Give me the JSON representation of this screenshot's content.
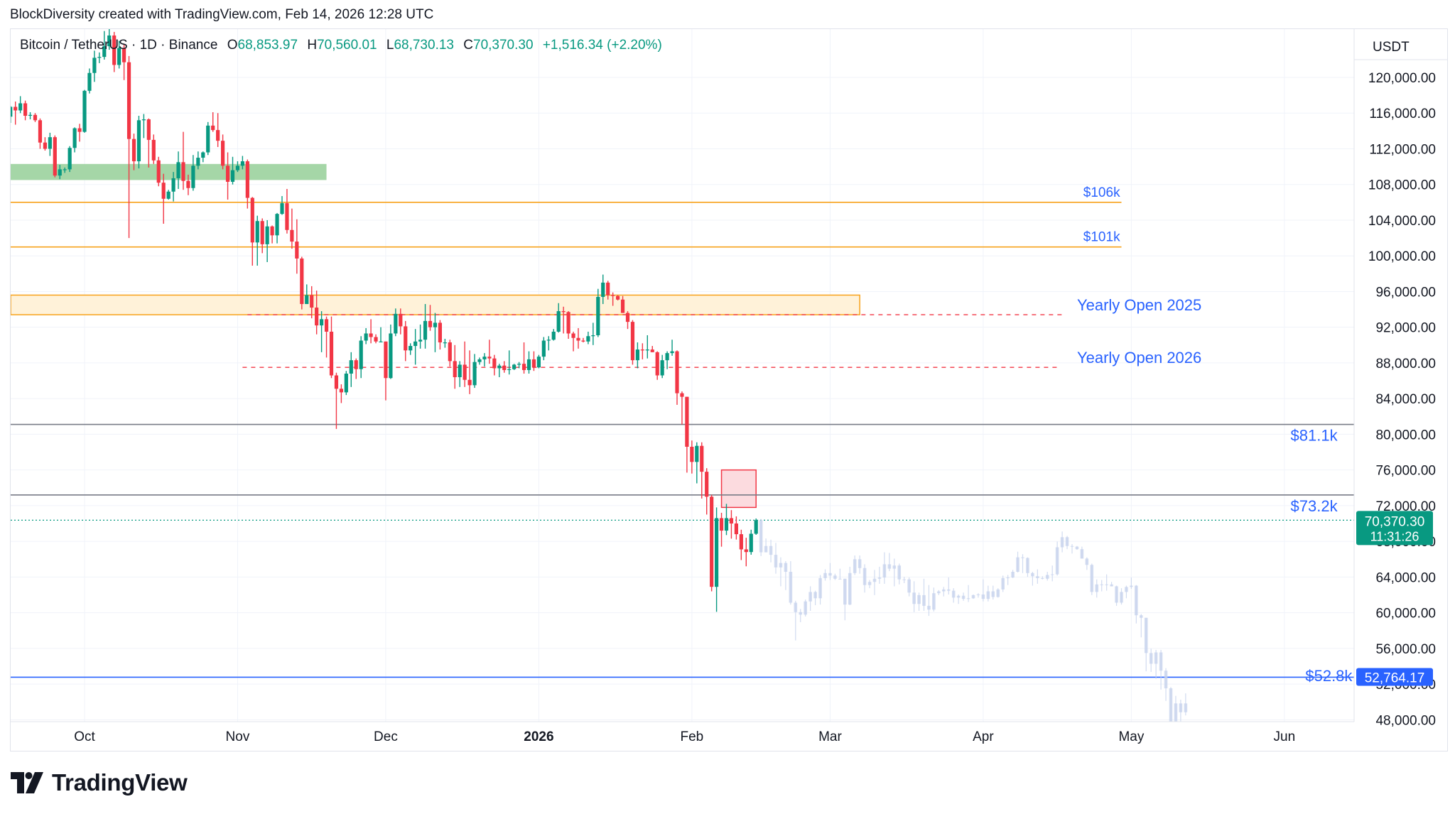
{
  "header": {
    "caption": "BlockDiversity created with TradingView.com, Feb 14, 2026 12:28 UTC"
  },
  "symbol": {
    "name": "Bitcoin / TetherUS · 1D · Binance",
    "open_label": "O",
    "open": "68,853.97",
    "high_label": "H",
    "high": "70,560.01",
    "low_label": "L",
    "low": "68,730.13",
    "close_label": "C",
    "close": "70,370.30",
    "change": "+1,516.34 (+2.20%)"
  },
  "brand": {
    "name": "TradingView",
    "icon": "tradingview-logo-icon"
  },
  "colors": {
    "up": "#089981",
    "down": "#f23645",
    "ghost": "#c5d2ec",
    "blue_line": "#2962ff",
    "annotation": "#2962ff",
    "orange": "#f7a21b"
  },
  "chart_data": {
    "type": "candlestick",
    "currency": "USDT",
    "ylim": [
      48000,
      124000
    ],
    "y_ticks": [
      "120,000.00",
      "116,000.00",
      "112,000.00",
      "108,000.00",
      "104,000.00",
      "100,000.00",
      "96,000.00",
      "92,000.00",
      "88,000.00",
      "84,000.00",
      "80,000.00",
      "76,000.00",
      "72,000.00",
      "68,000.00",
      "64,000.00",
      "60,000.00",
      "56,000.00",
      "52,000.00",
      "48,000.00"
    ],
    "x_ticks": [
      {
        "label": "Oct",
        "date": "2025-10-01",
        "bold": false
      },
      {
        "label": "Nov",
        "date": "2025-11-01",
        "bold": false
      },
      {
        "label": "Dec",
        "date": "2025-12-01",
        "bold": false
      },
      {
        "label": "2026",
        "date": "2026-01-01",
        "bold": true
      },
      {
        "label": "Feb",
        "date": "2026-02-01",
        "bold": false
      },
      {
        "label": "Mar",
        "date": "2026-03-01",
        "bold": false
      },
      {
        "label": "Apr",
        "date": "2026-04-01",
        "bold": false
      },
      {
        "label": "May",
        "date": "2026-05-01",
        "bold": false
      },
      {
        "label": "Jun",
        "date": "2026-06-01",
        "bold": false
      }
    ],
    "x_range": [
      "2025-09-16",
      "2026-06-21"
    ],
    "last_price": {
      "value": "70,370.30",
      "countdown": "11:31:26",
      "price": 70370.3
    },
    "marked_price": {
      "value": "52,764.17",
      "price": 52764.17
    },
    "horizontal_lines": [
      {
        "label": "$106k",
        "price": 106000,
        "color": "#f7a21b",
        "start": "2025-09-16",
        "end": "2026-04-29",
        "label_date": "2026-04-25",
        "label_size": "small"
      },
      {
        "label": "$101k",
        "price": 101000,
        "color": "#f7a21b",
        "start": "2025-09-16",
        "end": "2026-04-29",
        "label_date": "2026-04-25",
        "label_size": "small"
      },
      {
        "label": "$81.1k",
        "price": 81100,
        "color": "#787b86",
        "start": "2025-09-16",
        "end": "2026-06-16",
        "label_date": "2026-06-07",
        "label_size": "large"
      },
      {
        "label": "$73.2k",
        "price": 73200,
        "color": "#787b86",
        "start": "2025-09-16",
        "end": "2026-06-16",
        "label_date": "2026-06-07",
        "label_size": "large"
      }
    ],
    "dashed_lines": [
      {
        "label": "Yearly Open 2025",
        "price": 93400,
        "start": "2025-11-03",
        "end": "2026-04-17",
        "label_date": "2026-04-20"
      },
      {
        "label": "Yearly Open 2026",
        "price": 87500,
        "start": "2025-11-02",
        "end": "2026-04-16",
        "label_date": "2026-04-20"
      }
    ],
    "zones": [
      {
        "name": "green-zone",
        "fill": "#a5d6a7",
        "stroke": "none",
        "x0": "2025-09-16",
        "x1": "2025-11-19",
        "y_top": 110300,
        "y_bottom": 108500
      },
      {
        "name": "orange-zone",
        "fill": "#fff2d9",
        "stroke": "#f7a21b",
        "x0": "2025-09-16",
        "x1": "2026-03-07",
        "y_top": 95600,
        "y_bottom": 93400
      },
      {
        "name": "pink-zone",
        "fill": "#fbd5d9",
        "stroke": "#f23645",
        "x0": "2026-02-07",
        "x1": "2026-02-14",
        "y_top": 76000,
        "y_bottom": 71800
      }
    ],
    "bottom_label": {
      "label": "$52.8k",
      "date": "2026-06-10",
      "price": 53200
    },
    "candles": [
      [
        "2025-09-16",
        115600,
        116800,
        114900,
        116700
      ],
      [
        "2025-09-17",
        116700,
        117300,
        114700,
        116300
      ],
      [
        "2025-09-18",
        116300,
        117900,
        116000,
        117100
      ],
      [
        "2025-09-19",
        117100,
        117400,
        115200,
        115700
      ],
      [
        "2025-09-20",
        115700,
        116100,
        115300,
        115800
      ],
      [
        "2025-09-21",
        115800,
        116000,
        115000,
        115200
      ],
      [
        "2025-09-22",
        115200,
        115400,
        112000,
        112700
      ],
      [
        "2025-09-23",
        112700,
        113300,
        111800,
        112000
      ],
      [
        "2025-09-24",
        112000,
        113800,
        111200,
        113300
      ],
      [
        "2025-09-25",
        113300,
        113500,
        108800,
        109000
      ],
      [
        "2025-09-26",
        109000,
        110200,
        108600,
        109700
      ],
      [
        "2025-09-27",
        109700,
        109900,
        109300,
        109700
      ],
      [
        "2025-09-28",
        109700,
        112300,
        109400,
        112100
      ],
      [
        "2025-09-29",
        112100,
        114400,
        111600,
        114300
      ],
      [
        "2025-09-30",
        114300,
        114800,
        112800,
        113900
      ],
      [
        "2025-10-01",
        113900,
        118600,
        113800,
        118500
      ],
      [
        "2025-10-02",
        118500,
        121000,
        118200,
        120500
      ],
      [
        "2025-10-03",
        120500,
        123000,
        119500,
        122200
      ],
      [
        "2025-10-04",
        122200,
        122800,
        121600,
        122300
      ],
      [
        "2025-10-05",
        122300,
        125200,
        122000,
        123500
      ],
      [
        "2025-10-06",
        123500,
        126200,
        123100,
        124700
      ],
      [
        "2025-10-07",
        124700,
        125100,
        120600,
        121400
      ],
      [
        "2025-10-08",
        121400,
        124100,
        121000,
        123300
      ],
      [
        "2025-10-09",
        123300,
        123700,
        119700,
        121700
      ],
      [
        "2025-10-10",
        121700,
        122400,
        102000,
        113100
      ],
      [
        "2025-10-11",
        113100,
        113700,
        109600,
        110600
      ],
      [
        "2025-10-12",
        110600,
        115700,
        109800,
        115200
      ],
      [
        "2025-10-13",
        115200,
        115900,
        113200,
        115300
      ],
      [
        "2025-10-14",
        115300,
        115400,
        109900,
        113000
      ],
      [
        "2025-10-15",
        113000,
        113600,
        110300,
        110700
      ],
      [
        "2025-10-16",
        110700,
        111100,
        107800,
        108200
      ],
      [
        "2025-10-17",
        108200,
        109200,
        103600,
        106400
      ],
      [
        "2025-10-18",
        106400,
        107400,
        106300,
        107200
      ],
      [
        "2025-10-19",
        107200,
        109400,
        106100,
        108700
      ],
      [
        "2025-10-20",
        108700,
        111700,
        107500,
        110500
      ],
      [
        "2025-10-21",
        110500,
        113900,
        107400,
        108400
      ],
      [
        "2025-10-22",
        108400,
        109100,
        106800,
        107600
      ],
      [
        "2025-10-23",
        107600,
        111300,
        107300,
        110100
      ],
      [
        "2025-10-24",
        110100,
        111700,
        109700,
        111000
      ],
      [
        "2025-10-25",
        111000,
        111700,
        110500,
        111600
      ],
      [
        "2025-10-26",
        111600,
        115000,
        111300,
        114600
      ],
      [
        "2025-10-27",
        114600,
        116100,
        113900,
        114100
      ],
      [
        "2025-10-28",
        114100,
        116000,
        112200,
        112900
      ],
      [
        "2025-10-29",
        112900,
        113600,
        109700,
        110100
      ],
      [
        "2025-10-30",
        110100,
        111600,
        106300,
        108300
      ],
      [
        "2025-10-31",
        108300,
        111100,
        108000,
        109600
      ],
      [
        "2025-11-01",
        109600,
        110600,
        109400,
        110100
      ],
      [
        "2025-11-02",
        110100,
        111200,
        109700,
        110600
      ],
      [
        "2025-11-03",
        110600,
        110800,
        105300,
        106500
      ],
      [
        "2025-11-04",
        106500,
        106600,
        98900,
        101500
      ],
      [
        "2025-11-05",
        101500,
        104500,
        98900,
        103900
      ],
      [
        "2025-11-06",
        103900,
        104200,
        100300,
        101300
      ],
      [
        "2025-11-07",
        101300,
        104000,
        99300,
        103300
      ],
      [
        "2025-11-08",
        103300,
        103400,
        101400,
        102300
      ],
      [
        "2025-11-09",
        102300,
        104800,
        101400,
        104700
      ],
      [
        "2025-11-10",
        104700,
        106700,
        104600,
        105900
      ],
      [
        "2025-11-11",
        105900,
        107500,
        102500,
        102900
      ],
      [
        "2025-11-12",
        102900,
        105300,
        100800,
        101600
      ],
      [
        "2025-11-13",
        101600,
        104100,
        98000,
        99700
      ],
      [
        "2025-11-14",
        99700,
        99900,
        94000,
        94600
      ],
      [
        "2025-11-15",
        94600,
        96800,
        94600,
        95600
      ],
      [
        "2025-11-16",
        95600,
        96600,
        93000,
        94200
      ],
      [
        "2025-11-17",
        94200,
        96100,
        91200,
        92200
      ],
      [
        "2025-11-18",
        92200,
        93800,
        89200,
        92900
      ],
      [
        "2025-11-19",
        92900,
        93200,
        88600,
        91500
      ],
      [
        "2025-11-20",
        91500,
        93200,
        86300,
        86600
      ],
      [
        "2025-11-21",
        86600,
        86900,
        80600,
        85100
      ],
      [
        "2025-11-22",
        85100,
        85600,
        83500,
        84700
      ],
      [
        "2025-11-23",
        84700,
        87100,
        84400,
        86800
      ],
      [
        "2025-11-24",
        86800,
        89200,
        85300,
        88300
      ],
      [
        "2025-11-25",
        88300,
        88500,
        86200,
        87300
      ],
      [
        "2025-11-26",
        87300,
        91000,
        86300,
        90500
      ],
      [
        "2025-11-27",
        90500,
        91900,
        90100,
        91300
      ],
      [
        "2025-11-28",
        91300,
        92900,
        90200,
        90900
      ],
      [
        "2025-11-29",
        90900,
        91200,
        90200,
        90400
      ],
      [
        "2025-11-30",
        90400,
        92000,
        90300,
        90400
      ],
      [
        "2025-12-01",
        90400,
        90400,
        83800,
        86300
      ],
      [
        "2025-12-02",
        86300,
        92300,
        86200,
        91300
      ],
      [
        "2025-12-03",
        91300,
        94100,
        91000,
        93500
      ],
      [
        "2025-12-04",
        93500,
        94100,
        91200,
        92100
      ],
      [
        "2025-12-05",
        92100,
        92700,
        88200,
        89400
      ],
      [
        "2025-12-06",
        89400,
        90200,
        88900,
        89900
      ],
      [
        "2025-12-07",
        89900,
        91800,
        87800,
        90400
      ],
      [
        "2025-12-08",
        90400,
        92300,
        89600,
        90600
      ],
      [
        "2025-12-09",
        90600,
        94600,
        89600,
        92700
      ],
      [
        "2025-12-10",
        92700,
        94500,
        91600,
        92000
      ],
      [
        "2025-12-11",
        92000,
        93600,
        89200,
        92500
      ],
      [
        "2025-12-12",
        92500,
        92800,
        89500,
        90300
      ],
      [
        "2025-12-13",
        90300,
        90700,
        89700,
        90300
      ],
      [
        "2025-12-14",
        90300,
        90600,
        87600,
        88200
      ],
      [
        "2025-12-15",
        88200,
        90000,
        85100,
        86400
      ],
      [
        "2025-12-16",
        86400,
        88200,
        85300,
        87800
      ],
      [
        "2025-12-17",
        87800,
        90400,
        85300,
        86100
      ],
      [
        "2025-12-18",
        86100,
        89400,
        84500,
        85500
      ],
      [
        "2025-12-19",
        85500,
        89000,
        85200,
        88100
      ],
      [
        "2025-12-20",
        88100,
        88600,
        87800,
        88400
      ],
      [
        "2025-12-21",
        88400,
        89100,
        87600,
        88700
      ],
      [
        "2025-12-22",
        88700,
        90600,
        87900,
        88500
      ],
      [
        "2025-12-23",
        88500,
        88900,
        86600,
        87400
      ],
      [
        "2025-12-24",
        87400,
        87900,
        86400,
        87700
      ],
      [
        "2025-12-25",
        87700,
        88200,
        86900,
        87200
      ],
      [
        "2025-12-26",
        87200,
        89400,
        86700,
        87300
      ],
      [
        "2025-12-27",
        87300,
        87900,
        87200,
        87800
      ],
      [
        "2025-12-28",
        87800,
        88100,
        87400,
        87900
      ],
      [
        "2025-12-29",
        87900,
        90300,
        86800,
        87200
      ],
      [
        "2025-12-30",
        87200,
        89300,
        86800,
        88400
      ],
      [
        "2025-12-31",
        88400,
        89300,
        87100,
        87500
      ],
      [
        "2026-01-01",
        87500,
        88900,
        87400,
        88700
      ],
      [
        "2026-01-02",
        88700,
        90900,
        88300,
        90500
      ],
      [
        "2026-01-03",
        90500,
        91000,
        89400,
        90600
      ],
      [
        "2026-01-04",
        90600,
        91800,
        90500,
        91500
      ],
      [
        "2026-01-05",
        91500,
        94700,
        91400,
        93800
      ],
      [
        "2026-01-06",
        93800,
        94300,
        91300,
        93700
      ],
      [
        "2026-01-07",
        93700,
        93800,
        90700,
        91300
      ],
      [
        "2026-01-08",
        91300,
        91500,
        89300,
        90800
      ],
      [
        "2026-01-09",
        90800,
        91900,
        89600,
        90500
      ],
      [
        "2026-01-10",
        90500,
        90800,
        90300,
        90400
      ],
      [
        "2026-01-11",
        90400,
        91500,
        90100,
        91000
      ],
      [
        "2026-01-12",
        91000,
        92500,
        90000,
        91100
      ],
      [
        "2026-01-13",
        91100,
        96300,
        90900,
        95400
      ],
      [
        "2026-01-14",
        95400,
        97900,
        94600,
        97000
      ],
      [
        "2026-01-15",
        97000,
        97200,
        95100,
        95600
      ],
      [
        "2026-01-16",
        95600,
        95900,
        94400,
        95500
      ],
      [
        "2026-01-17",
        95500,
        95600,
        95000,
        95100
      ],
      [
        "2026-01-18",
        95100,
        95500,
        93600,
        93600
      ],
      [
        "2026-01-19",
        93600,
        93800,
        91800,
        92600
      ],
      [
        "2026-01-20",
        92600,
        92800,
        87800,
        88300
      ],
      [
        "2026-01-21",
        88300,
        90300,
        87400,
        89500
      ],
      [
        "2026-01-22",
        89500,
        90200,
        88400,
        89400
      ],
      [
        "2026-01-23",
        89400,
        91100,
        88500,
        89500
      ],
      [
        "2026-01-24",
        89500,
        89900,
        89200,
        89200
      ],
      [
        "2026-01-25",
        89200,
        89300,
        86100,
        86600
      ],
      [
        "2026-01-26",
        86600,
        88900,
        86300,
        88300
      ],
      [
        "2026-01-27",
        88300,
        89300,
        87300,
        89100
      ],
      [
        "2026-01-28",
        89100,
        90600,
        88800,
        89300
      ],
      [
        "2026-01-29",
        89300,
        89400,
        83300,
        84600
      ],
      [
        "2026-01-30",
        84600,
        84800,
        81100,
        84200
      ],
      [
        "2026-01-31",
        84200,
        84200,
        75700,
        78600
      ],
      [
        "2026-02-01",
        78600,
        79300,
        75600,
        76900
      ],
      [
        "2026-02-02",
        76900,
        79100,
        74500,
        78700
      ],
      [
        "2026-02-03",
        78700,
        79100,
        72800,
        75800
      ],
      [
        "2026-02-04",
        75800,
        76200,
        71000,
        73000
      ],
      [
        "2026-02-05",
        73000,
        73200,
        62400,
        62900
      ],
      [
        "2026-02-06",
        62900,
        71800,
        60100,
        70600
      ],
      [
        "2026-02-07",
        70600,
        71200,
        67400,
        69200
      ],
      [
        "2026-02-08",
        69200,
        72200,
        68700,
        70600
      ],
      [
        "2026-02-09",
        70600,
        71500,
        68300,
        70000
      ],
      [
        "2026-02-10",
        70000,
        70800,
        68200,
        68800
      ],
      [
        "2026-02-11",
        68800,
        69300,
        65900,
        67100
      ],
      [
        "2026-02-12",
        67100,
        68400,
        65200,
        66800
      ],
      [
        "2026-02-13",
        66800,
        69300,
        66500,
        68850
      ],
      [
        "2026-02-14",
        68850,
        70560,
        68730,
        70370
      ]
    ]
  }
}
